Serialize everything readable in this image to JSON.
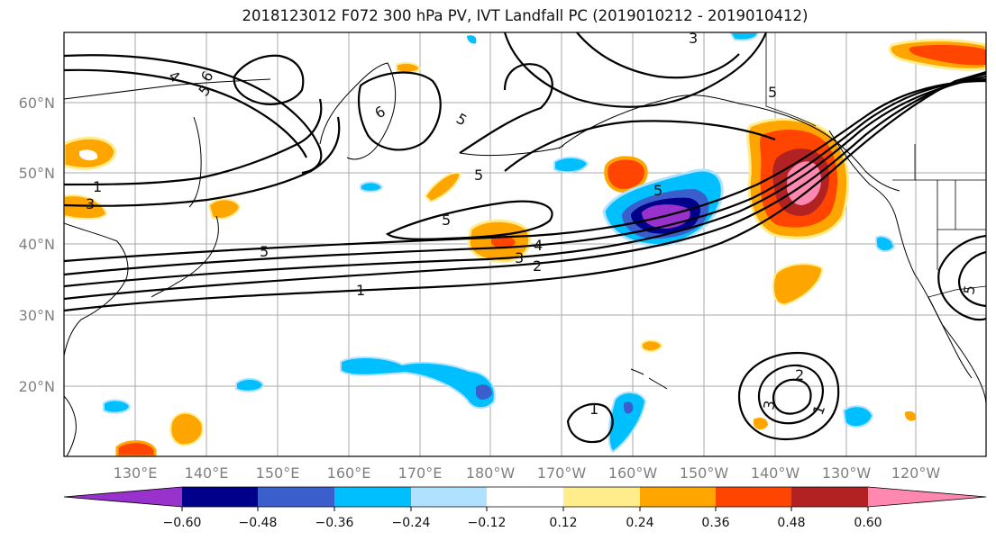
{
  "title": "2018123012 F072 300 hPa PV, IVT Landfall PC (2019010212 - 2019010412)",
  "map": {
    "lat_labels": [
      "60°N",
      "50°N",
      "40°N",
      "30°N",
      "20°N"
    ],
    "lon_labels": [
      "130°E",
      "140°E",
      "150°E",
      "160°E",
      "170°E",
      "180°W",
      "170°W",
      "160°W",
      "150°W",
      "140°W",
      "130°W",
      "120°W"
    ],
    "contour_labels": [
      "1",
      "3",
      "5",
      "4",
      "3",
      "2",
      "1",
      "5",
      "5",
      "5",
      "6",
      "6",
      "5",
      "4",
      "5",
      "3",
      "5",
      "1",
      "2",
      "3",
      "1",
      "5"
    ]
  },
  "colorbar": {
    "tick_labels": [
      "−0.60",
      "−0.48",
      "−0.36",
      "−0.24",
      "−0.12",
      "0.12",
      "0.24",
      "0.36",
      "0.48",
      "0.60"
    ],
    "colors": [
      "#9932cc",
      "#00008b",
      "#3a5fcd",
      "#00bfff",
      "#b0e2ff",
      "#ffffff",
      "#ffec8b",
      "#ffa500",
      "#ff4500",
      "#b22222",
      "#ff88b0"
    ]
  }
}
